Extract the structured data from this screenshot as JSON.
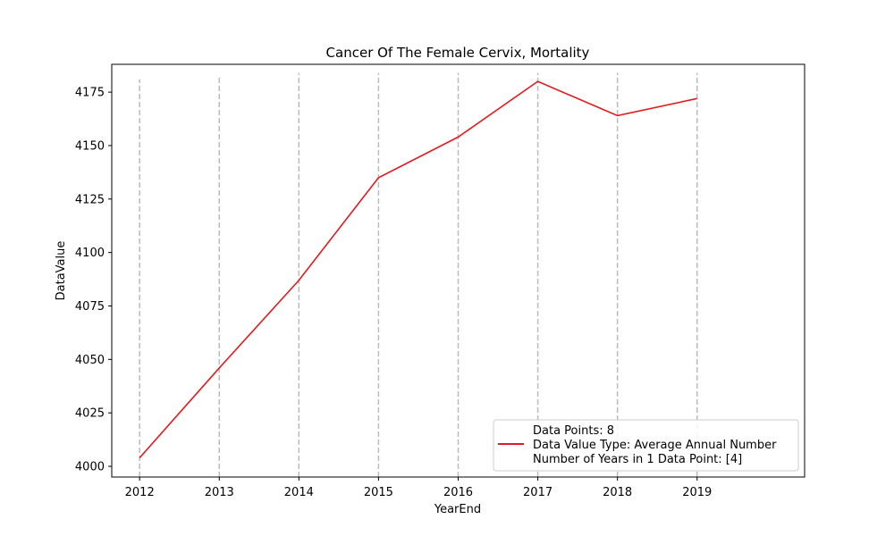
{
  "chart_data": {
    "type": "line",
    "title": "Cancer Of The Female Cervix, Mortality",
    "xlabel": "YearEnd",
    "ylabel": "DataValue",
    "x": [
      2012,
      2013,
      2014,
      2015,
      2016,
      2017,
      2018,
      2019
    ],
    "series": [
      {
        "name": "Data Value Type: Average Annual Number",
        "color": "#e31a1c",
        "values": [
          4004,
          4046,
          4087,
          4135,
          4154,
          4180,
          4164,
          4172
        ]
      }
    ],
    "xlim": [
      2011.65,
      2020.35
    ],
    "ylim": [
      3995,
      4188
    ],
    "yticks": [
      4000,
      4025,
      4050,
      4075,
      4100,
      4125,
      4150,
      4175
    ],
    "xticks": [
      2012,
      2013,
      2014,
      2015,
      2016,
      2017,
      2018,
      2019
    ],
    "vlines": {
      "color": "#bbbbbb",
      "style": "dashed",
      "positions": [
        2012,
        2013,
        2014,
        2015,
        2016,
        2017,
        2018,
        2019
      ],
      "ymax": [
        4181,
        4183,
        4184,
        4184,
        4184,
        4184,
        4184,
        4184
      ]
    },
    "grid": false,
    "legend": {
      "placement": "lower-right",
      "lines": [
        "Data Points: 8",
        "Data Value Type: Average Annual Number",
        "Number of Years in 1 Data Point: [4]"
      ]
    }
  }
}
